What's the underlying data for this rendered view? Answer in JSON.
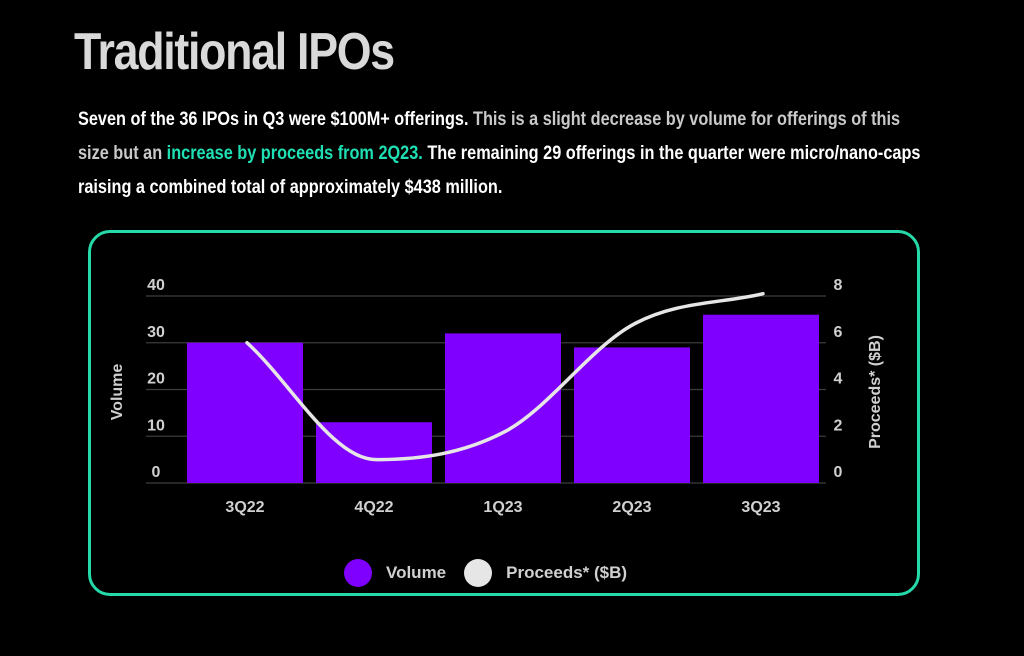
{
  "page": {
    "title": "Traditional IPOs",
    "description": [
      {
        "text": "Seven of the 36 IPOs in Q3 were $100M+ offerings.",
        "style": "plain"
      },
      {
        "text": " This is a slight decrease by volume for offerings of this size but an ",
        "style": "muted"
      },
      {
        "text": "increase by proceeds from 2Q23.",
        "style": "accent"
      },
      {
        "text": " The remaining 29 offerings in the quarter were micro/nano-caps raising a combined total of approximately $438 million.",
        "style": "plain"
      }
    ]
  },
  "colors": {
    "bar": "#7f00ff",
    "line": "#e6e6e6",
    "accent": "#1fe0b5",
    "card_border": "#25d9a8",
    "grid": "#3c3c3c",
    "axis_text": "#d0d0d0"
  },
  "chart_data": {
    "type": "bar",
    "categories": [
      "3Q22",
      "4Q22",
      "1Q23",
      "2Q23",
      "3Q23"
    ],
    "series": [
      {
        "name": "Volume",
        "type": "bar",
        "axis": "left",
        "values": [
          30,
          13,
          32,
          29,
          36
        ]
      },
      {
        "name": "Proceeds* ($B)",
        "type": "line",
        "axis": "right",
        "values": [
          6.0,
          1.0,
          2.2,
          6.8,
          8.1
        ]
      }
    ],
    "ylabel": "Volume",
    "ylabel_right": "Proceeds* ($B)",
    "ylim": [
      0,
      40
    ],
    "ylim_right": [
      0,
      8
    ],
    "yticks": [
      0,
      10,
      20,
      30,
      40
    ],
    "yticks_right": [
      0,
      2,
      4,
      6,
      8
    ],
    "grid": true,
    "legend": "bottom-center"
  }
}
